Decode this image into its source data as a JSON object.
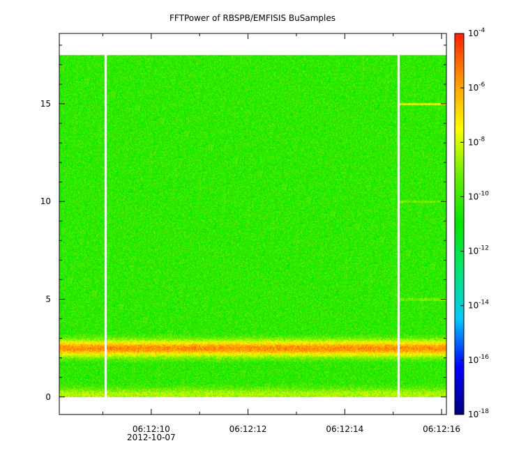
{
  "chart_data": {
    "type": "heatmap",
    "title": "FFTPower of RBSPB/EMFISIS  BuSamples",
    "xlabel": "",
    "ylabel": "",
    "x_ticks": [
      {
        "value": 10,
        "label": "06:12:10",
        "sublabel": "2012-10-07"
      },
      {
        "value": 12,
        "label": "06:12:12",
        "sublabel": ""
      },
      {
        "value": 14,
        "label": "06:12:14",
        "sublabel": ""
      },
      {
        "value": 16,
        "label": "06:12:16",
        "sublabel": ""
      }
    ],
    "x_minor_ticks": [
      9,
      11,
      13,
      15
    ],
    "xlim": [
      8.1,
      16.1
    ],
    "x_units": "seconds after 06:12:00 UT, 2012-10-07",
    "y_ticks": [
      0,
      5,
      10,
      15
    ],
    "ylim": [
      -0.9,
      18.6
    ],
    "y_data_range": [
      0,
      17.5
    ],
    "x_data_range": [
      8.1,
      16.1
    ],
    "data_gaps_x": [
      9.05,
      15.1
    ],
    "colorbar": {
      "scale": "log",
      "range_exponents": [
        -18,
        -4
      ],
      "base": "10",
      "tick_exponents": [
        -18,
        -16,
        -14,
        -12,
        -10,
        -8,
        -6,
        -4
      ],
      "tick_labels": [
        "10-18",
        "10-16",
        "10-14",
        "10-12",
        "10-10",
        "10-8",
        "10-6",
        "10-4"
      ],
      "colormap": [
        "#000080",
        "#0000ff",
        "#00c8ff",
        "#00e676",
        "#00e600",
        "#66ee00",
        "#ffff00",
        "#ff9900",
        "#ff2200"
      ]
    },
    "background_level_exp": -10.2,
    "features": [
      {
        "kind": "band",
        "y_center": 2.5,
        "y_halfwidth": 0.45,
        "level_exp": -5.6
      },
      {
        "kind": "band",
        "y_center": 0.15,
        "y_halfwidth": 0.35,
        "level_exp": -8.4
      },
      {
        "kind": "line",
        "y": 15.0,
        "x_start": 15.1,
        "level_exp": -7.8
      },
      {
        "kind": "line",
        "y": 10.0,
        "x_start": 15.1,
        "level_exp": -9.2
      },
      {
        "kind": "line",
        "y": 5.0,
        "x_start": 15.1,
        "level_exp": -9.2
      }
    ]
  }
}
